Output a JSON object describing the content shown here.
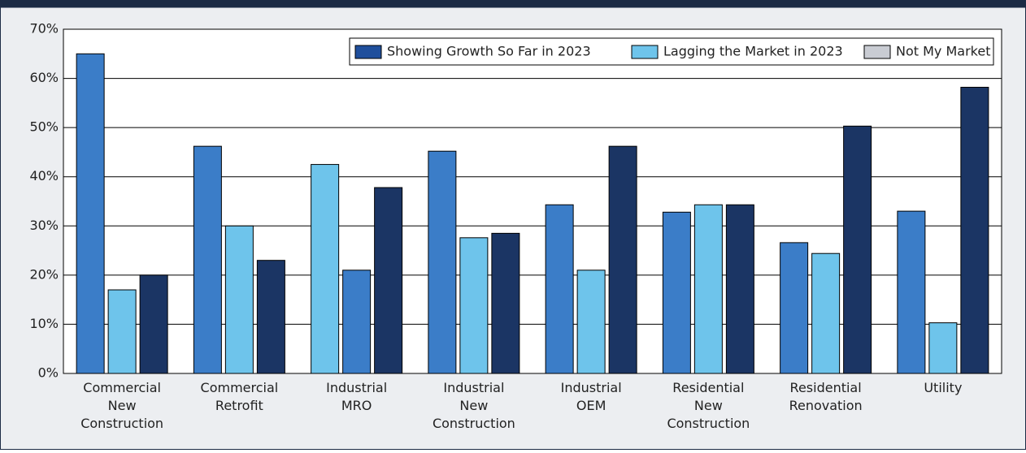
{
  "chart_data": {
    "type": "bar",
    "categories": [
      [
        "Commercial",
        "New",
        "Construction"
      ],
      [
        "Commercial",
        "Retrofit"
      ],
      [
        "Industrial",
        "MRO"
      ],
      [
        "Industrial",
        "New",
        "Construction"
      ],
      [
        "Industrial",
        "OEM"
      ],
      [
        "Residential",
        "New",
        "Construction"
      ],
      [
        "Residential",
        "Renovation"
      ],
      [
        "Utility"
      ]
    ],
    "series": [
      {
        "name": "Showing Growth So Far in 2023",
        "color": "#1f4f9c",
        "values": [
          65,
          46.2,
          42.5,
          45.2,
          34.3,
          32.8,
          26.6,
          33
        ],
        "colors": [
          "#3b7dc8",
          "#3b7dc8",
          "#6ec4eb",
          "#3b7dc8",
          "#3b7dc8",
          "#3b7dc8",
          "#3b7dc8",
          "#3b7dc8"
        ]
      },
      {
        "name": "Lagging the Market in 2023",
        "color": "#6ec4eb",
        "values": [
          17,
          30,
          21,
          27.6,
          21,
          34.3,
          24.4,
          10.3
        ],
        "colors": [
          "#6ec4eb",
          "#6ec4eb",
          "#3b7dc8",
          "#6ec4eb",
          "#6ec4eb",
          "#6ec4eb",
          "#6ec4eb",
          "#6ec4eb"
        ]
      },
      {
        "name": "Not My Market",
        "color": "#c9ccd3",
        "values": [
          20,
          23,
          37.8,
          28.5,
          46.2,
          34.3,
          50.3,
          58.2
        ],
        "colors": [
          "#1b3564",
          "#1b3564",
          "#1b3564",
          "#1b3564",
          "#1b3564",
          "#1b3564",
          "#1b3564",
          "#1b3564"
        ]
      }
    ],
    "ylim": [
      0,
      70
    ],
    "yticks": [
      {
        "value": 0,
        "label": "0%"
      },
      {
        "value": 10,
        "label": "10%"
      },
      {
        "value": 20,
        "label": "20%"
      },
      {
        "value": 30,
        "label": "30%"
      },
      {
        "value": 40,
        "label": "40%"
      },
      {
        "value": 50,
        "label": "50%"
      },
      {
        "value": 60,
        "label": "60%"
      },
      {
        "value": 70,
        "label": "70%"
      }
    ],
    "grid": true,
    "legend": "top-right"
  }
}
